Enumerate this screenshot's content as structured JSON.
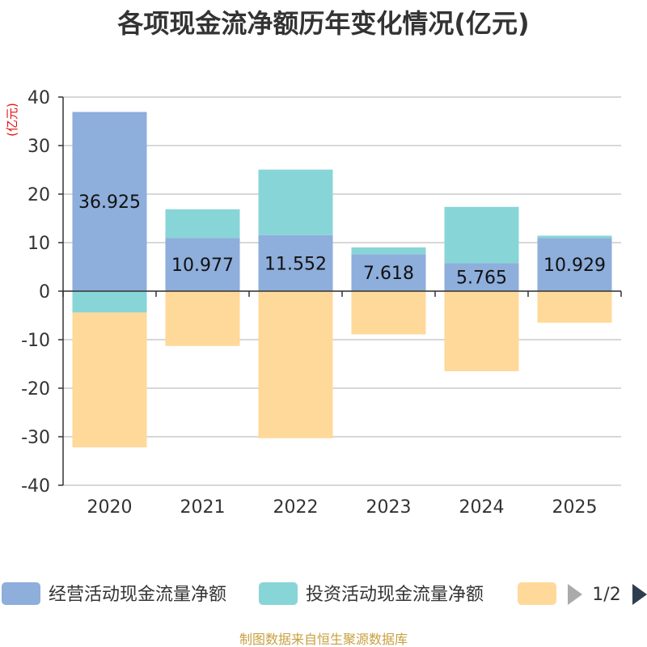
{
  "chart_data": {
    "type": "bar",
    "stacked": true,
    "title": "各项现金流净额历年变化情况(亿元)",
    "unit_label": "(亿元)",
    "categories": [
      "2020",
      "2021",
      "2022",
      "2023",
      "2024",
      "2025"
    ],
    "ylim": [
      -40,
      40
    ],
    "yticks": [
      40,
      30,
      20,
      10,
      0,
      -10,
      -20,
      -30,
      -40
    ],
    "grid": true,
    "series": [
      {
        "name": "经营活动现金流量净额",
        "color": "#8eaedb",
        "values": [
          36.925,
          10.977,
          11.552,
          7.618,
          5.765,
          10.929
        ],
        "labels": [
          "36.925",
          "10.977",
          "11.552",
          "7.618",
          "5.765",
          "10.929"
        ]
      },
      {
        "name": "投资活动现金流量净额",
        "color": "#88d5d8",
        "values": [
          -4.4,
          5.9,
          13.5,
          1.4,
          11.6,
          0.5
        ]
      },
      {
        "name": "",
        "color": "#ffd99a",
        "values": [
          -27.8,
          -11.3,
          -30.3,
          -8.9,
          -16.5,
          -6.5
        ]
      }
    ],
    "legend": {
      "position": "bottom",
      "page": "1/2"
    },
    "footer": "制图数据来自恒生聚源数据库"
  }
}
